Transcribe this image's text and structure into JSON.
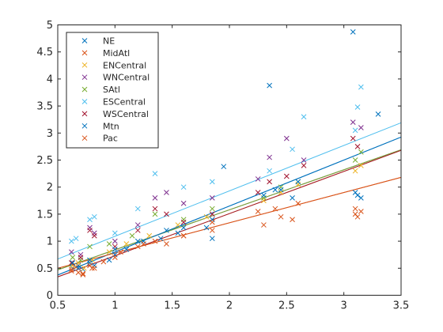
{
  "chart_data": {
    "type": "scatter",
    "xlim": [
      0.5,
      3.5
    ],
    "ylim": [
      0,
      5
    ],
    "xticks": [
      0.5,
      1,
      1.5,
      2,
      2.5,
      3,
      3.5
    ],
    "yticks": [
      0,
      0.5,
      1,
      1.5,
      2,
      2.5,
      3,
      3.5,
      4,
      4.5,
      5
    ],
    "xtick_labels": [
      "0.5",
      "1",
      "1.5",
      "2",
      "2.5",
      "3",
      "3.5"
    ],
    "ytick_labels": [
      "0",
      "0.5",
      "1",
      "1.5",
      "2",
      "2.5",
      "3",
      "3.5",
      "4",
      "4.5",
      "5"
    ],
    "grid": false,
    "legend_position": "top-left",
    "marker": "x",
    "series": [
      {
        "name": "NE",
        "color": "#0072BD",
        "points": [
          [
            0.63,
            0.5
          ],
          [
            0.68,
            0.55
          ],
          [
            0.72,
            0.48
          ],
          [
            0.78,
            0.6
          ],
          [
            0.82,
            0.55
          ],
          [
            0.95,
            0.65
          ],
          [
            1.0,
            0.75
          ],
          [
            1.1,
            0.85
          ],
          [
            1.25,
            1.0
          ],
          [
            1.4,
            1.05
          ],
          [
            1.55,
            1.15
          ],
          [
            1.8,
            1.25
          ],
          [
            1.85,
            1.05
          ],
          [
            2.35,
            3.88
          ],
          [
            2.4,
            1.95
          ],
          [
            2.55,
            1.8
          ],
          [
            3.08,
            4.87
          ],
          [
            3.12,
            1.85
          ],
          [
            3.3,
            3.35
          ]
        ],
        "fit": {
          "intercept": -0.05,
          "slope": 0.85
        }
      },
      {
        "name": "MidAtl",
        "color": "#D95319",
        "points": [
          [
            0.62,
            0.45
          ],
          [
            0.66,
            0.52
          ],
          [
            0.72,
            0.4
          ],
          [
            0.78,
            0.55
          ],
          [
            0.82,
            0.5
          ],
          [
            0.9,
            0.62
          ],
          [
            1.05,
            0.8
          ],
          [
            1.2,
            0.9
          ],
          [
            1.35,
            1.0
          ],
          [
            1.6,
            1.1
          ],
          [
            1.85,
            1.2
          ],
          [
            2.25,
            1.55
          ],
          [
            2.4,
            1.6
          ],
          [
            2.6,
            1.7
          ],
          [
            3.1,
            1.6
          ],
          [
            3.15,
            1.55
          ]
        ],
        "fit": {
          "intercept": 0.22,
          "slope": 0.56
        }
      },
      {
        "name": "ENCentral",
        "color": "#EDB120",
        "points": [
          [
            0.63,
            0.55
          ],
          [
            0.68,
            0.6
          ],
          [
            0.73,
            0.5
          ],
          [
            0.8,
            0.65
          ],
          [
            0.95,
            0.8
          ],
          [
            1.1,
            0.95
          ],
          [
            1.3,
            1.1
          ],
          [
            1.55,
            1.3
          ],
          [
            1.8,
            1.45
          ],
          [
            2.3,
            1.75
          ],
          [
            2.45,
            1.9
          ],
          [
            2.6,
            2.05
          ],
          [
            3.1,
            2.3
          ],
          [
            3.15,
            2.4
          ]
        ],
        "fit": {
          "intercept": -0.05,
          "slope": 0.78
        }
      },
      {
        "name": "WNCentral",
        "color": "#7E2F8E",
        "points": [
          [
            0.62,
            0.8
          ],
          [
            0.7,
            0.75
          ],
          [
            0.78,
            1.25
          ],
          [
            0.82,
            1.15
          ],
          [
            1.0,
            1.0
          ],
          [
            1.2,
            1.3
          ],
          [
            1.35,
            1.8
          ],
          [
            1.45,
            1.9
          ],
          [
            1.6,
            1.7
          ],
          [
            1.85,
            1.8
          ],
          [
            2.25,
            2.15
          ],
          [
            2.35,
            2.55
          ],
          [
            2.5,
            2.9
          ],
          [
            2.65,
            2.5
          ],
          [
            3.08,
            3.2
          ],
          [
            3.15,
            3.1
          ]
        ],
        "fit": {
          "intercept": 0.1,
          "slope": 0.74
        }
      },
      {
        "name": "SAtl",
        "color": "#77AC30",
        "points": [
          [
            0.63,
            0.7
          ],
          [
            0.7,
            0.65
          ],
          [
            0.78,
            0.9
          ],
          [
            0.95,
            0.95
          ],
          [
            1.15,
            1.1
          ],
          [
            1.35,
            1.5
          ],
          [
            1.6,
            1.4
          ],
          [
            1.85,
            1.6
          ],
          [
            2.3,
            1.8
          ],
          [
            2.45,
            2.0
          ],
          [
            2.6,
            2.1
          ],
          [
            3.1,
            2.5
          ],
          [
            3.15,
            2.65
          ]
        ],
        "fit": {
          "intercept": 0.1,
          "slope": 0.74
        }
      },
      {
        "name": "ESCentral",
        "color": "#4DBEEE",
        "points": [
          [
            0.62,
            1.0
          ],
          [
            0.66,
            1.05
          ],
          [
            0.78,
            1.4
          ],
          [
            0.82,
            1.45
          ],
          [
            1.0,
            1.15
          ],
          [
            1.2,
            1.6
          ],
          [
            1.35,
            2.25
          ],
          [
            1.6,
            2.0
          ],
          [
            1.85,
            2.1
          ],
          [
            2.35,
            2.3
          ],
          [
            2.55,
            2.7
          ],
          [
            2.65,
            3.3
          ],
          [
            3.1,
            3.05
          ],
          [
            3.15,
            3.85
          ],
          [
            3.12,
            3.48
          ]
        ],
        "fit": {
          "intercept": 0.25,
          "slope": 0.84
        }
      },
      {
        "name": "WSCentral",
        "color": "#A2142F",
        "points": [
          [
            0.62,
            0.6
          ],
          [
            0.7,
            0.7
          ],
          [
            0.78,
            1.2
          ],
          [
            0.82,
            1.1
          ],
          [
            1.0,
            0.9
          ],
          [
            1.2,
            1.2
          ],
          [
            1.35,
            1.6
          ],
          [
            1.45,
            1.5
          ],
          [
            1.6,
            1.35
          ],
          [
            1.85,
            1.5
          ],
          [
            2.25,
            1.9
          ],
          [
            2.35,
            2.1
          ],
          [
            2.5,
            2.2
          ],
          [
            2.65,
            2.4
          ],
          [
            3.08,
            2.9
          ],
          [
            3.12,
            2.75
          ]
        ],
        "fit": {
          "intercept": -0.05,
          "slope": 0.78
        }
      },
      {
        "name": "Mtn",
        "color": "#0072BD",
        "points": [
          [
            0.63,
            0.6
          ],
          [
            0.68,
            0.5
          ],
          [
            0.78,
            0.65
          ],
          [
            1.0,
            0.85
          ],
          [
            1.2,
            1.0
          ],
          [
            1.45,
            1.2
          ],
          [
            1.6,
            1.25
          ],
          [
            1.85,
            1.4
          ],
          [
            1.95,
            2.38
          ],
          [
            2.3,
            1.85
          ],
          [
            2.45,
            1.95
          ],
          [
            2.6,
            2.1
          ],
          [
            3.1,
            1.9
          ],
          [
            3.15,
            1.8
          ]
        ],
        "fit": {
          "intercept": -0.05,
          "slope": 0.85
        }
      },
      {
        "name": "Pac",
        "color": "#D95319",
        "points": [
          [
            0.62,
            0.48
          ],
          [
            0.68,
            0.42
          ],
          [
            0.72,
            0.38
          ],
          [
            0.8,
            0.5
          ],
          [
            1.0,
            0.7
          ],
          [
            1.25,
            0.95
          ],
          [
            1.45,
            0.95
          ],
          [
            1.6,
            1.1
          ],
          [
            1.85,
            1.35
          ],
          [
            2.3,
            1.3
          ],
          [
            2.45,
            1.45
          ],
          [
            2.55,
            1.4
          ],
          [
            3.1,
            1.5
          ],
          [
            3.12,
            1.45
          ]
        ],
        "fit": {
          "intercept": 0.22,
          "slope": 0.56
        }
      }
    ]
  }
}
